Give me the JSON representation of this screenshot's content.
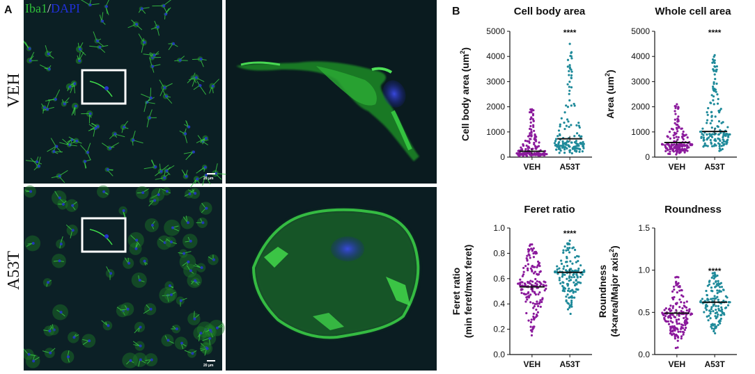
{
  "panel_a": {
    "letter": "A",
    "legend_iba1": "Iba1",
    "legend_slash": "/",
    "legend_dapi": "DAPI",
    "rows": [
      {
        "label": "VEH",
        "scale_bar": "20 μm"
      },
      {
        "label": "A53T",
        "scale_bar": "20 μm"
      }
    ],
    "colors": {
      "iba1": "#2fbf3a",
      "dapi": "#2030d8",
      "background": "#0b1f24"
    }
  },
  "panel_b": {
    "letter": "B"
  },
  "chart_data": [
    {
      "type": "scatter",
      "title": "Cell body area",
      "ylabel": "Cell body area (um²)",
      "ylabel_main": "Cell body area (um",
      "ylabel_sup": "2",
      "ylabel_end": ")",
      "categories": [
        "VEH",
        "A53T"
      ],
      "ylim": [
        0,
        5000
      ],
      "yticks": [
        "0",
        "1000",
        "2000",
        "3000",
        "4000",
        "5000"
      ],
      "ytick_values": [
        0,
        1000,
        2000,
        3000,
        4000,
        5000
      ],
      "series": [
        {
          "category": "VEH",
          "color": "#8b1a9c",
          "mean": 230,
          "n": 170,
          "min": 30,
          "max": 1900,
          "median": 150
        },
        {
          "category": "A53T",
          "color": "#1f8a9a",
          "mean": 730,
          "n": 150,
          "min": 80,
          "max": 4500,
          "median": 550
        }
      ],
      "annotation": "****"
    },
    {
      "type": "scatter",
      "title": "Whole cell area",
      "ylabel": "Area (um²)",
      "ylabel_main": "Area  (um",
      "ylabel_sup": "2",
      "ylabel_end": ")",
      "categories": [
        "VEH",
        "A53T"
      ],
      "ylim": [
        0,
        5000
      ],
      "yticks": [
        "0",
        "1000",
        "2000",
        "3000",
        "4000",
        "5000"
      ],
      "ytick_values": [
        0,
        1000,
        2000,
        3000,
        4000,
        5000
      ],
      "series": [
        {
          "category": "VEH",
          "color": "#8b1a9c",
          "mean": 580,
          "n": 170,
          "min": 100,
          "max": 2100,
          "median": 500
        },
        {
          "category": "A53T",
          "color": "#1f8a9a",
          "mean": 1020,
          "n": 150,
          "min": 150,
          "max": 4050,
          "median": 900
        }
      ],
      "annotation": "****"
    },
    {
      "type": "scatter",
      "title": "Feret ratio",
      "ylabel": "Feret ratio (min feret/max feret)",
      "ylabel_line1": "Feret ratio",
      "ylabel_line2": "(min feret/max feret)",
      "categories": [
        "VEH",
        "A53T"
      ],
      "ylim": [
        0,
        1.0
      ],
      "yticks": [
        "0.0",
        "0.2",
        "0.4",
        "0.6",
        "0.8",
        "1.0"
      ],
      "ytick_values": [
        0,
        0.2,
        0.4,
        0.6,
        0.8,
        1.0
      ],
      "series": [
        {
          "category": "VEH",
          "color": "#8b1a9c",
          "mean": 0.535,
          "n": 170,
          "min": 0.1,
          "max": 0.87,
          "median": 0.54
        },
        {
          "category": "A53T",
          "color": "#1f8a9a",
          "mean": 0.65,
          "n": 150,
          "min": 0.3,
          "max": 0.9,
          "median": 0.65
        }
      ],
      "annotation": "****"
    },
    {
      "type": "scatter",
      "title": "Roundness",
      "ylabel": "Roundness (4×area/Major axis²)",
      "ylabel_line1": "Roundness",
      "ylabel_line2_main": "(4×area/Major axis",
      "ylabel_line2_sup": "2",
      "ylabel_line2_end": ")",
      "categories": [
        "VEH",
        "A53T"
      ],
      "ylim": [
        0,
        1.5
      ],
      "yticks": [
        "0.0",
        "0.5",
        "1.0",
        "1.5"
      ],
      "ytick_values": [
        0,
        0.5,
        1.0,
        1.5
      ],
      "series": [
        {
          "category": "VEH",
          "color": "#8b1a9c",
          "mean": 0.49,
          "n": 170,
          "min": 0.05,
          "max": 0.92,
          "median": 0.48
        },
        {
          "category": "A53T",
          "color": "#1f8a9a",
          "mean": 0.62,
          "n": 150,
          "min": 0.18,
          "max": 0.97,
          "median": 0.62
        }
      ],
      "annotation": "****"
    }
  ]
}
